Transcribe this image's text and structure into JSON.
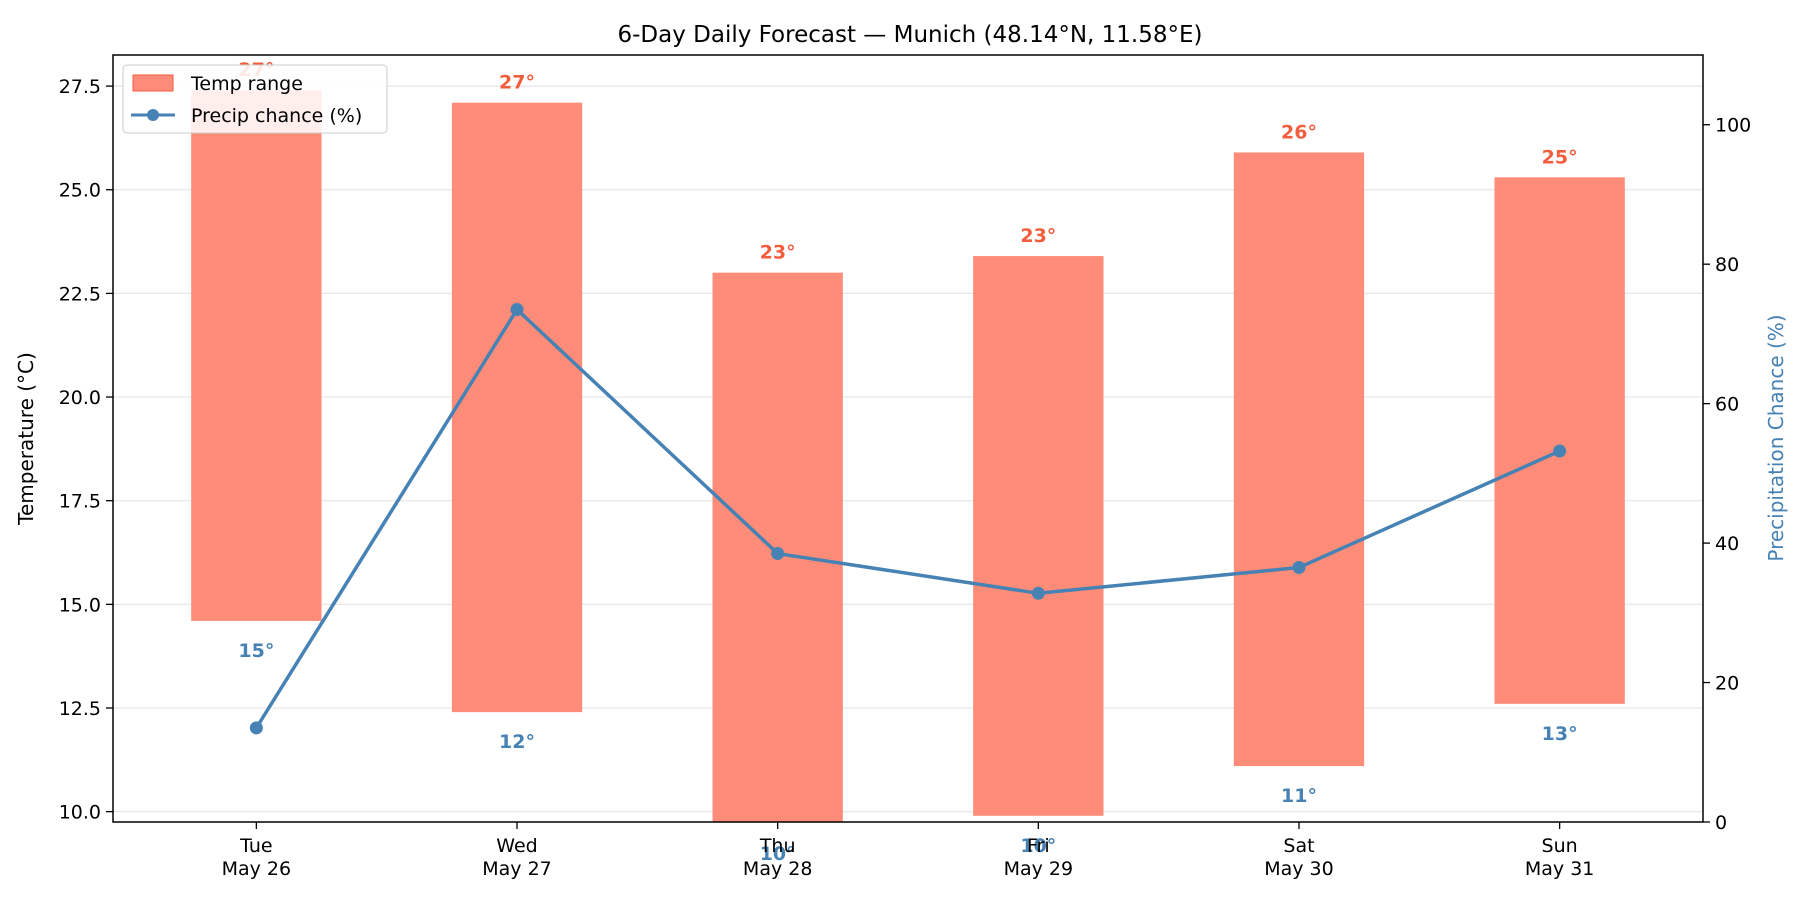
{
  "colors": {
    "bar": "#ff8c78",
    "high_label": "#f25d3d",
    "low_label": "#4682b4",
    "precip": "#4682b4",
    "grid": "#e6e6e6"
  },
  "chart_data": {
    "type": "bar",
    "title": "6-Day Daily Forecast — Munich (48.14°N, 11.58°E)",
    "ylabel": "Temperature (°C)",
    "ylabel_right": "Precipitation Chance (%)",
    "categories": [
      [
        "Tue",
        "May 26"
      ],
      [
        "Wed",
        "May 27"
      ],
      [
        "Thu",
        "May 28"
      ],
      [
        "Fri",
        "May 29"
      ],
      [
        "Sat",
        "May 30"
      ],
      [
        "Sun",
        "May 31"
      ]
    ],
    "ylim": [
      9.75,
      28.25
    ],
    "ylim_right": [
      0,
      110
    ],
    "yticks": [
      10.0,
      12.5,
      15.0,
      17.5,
      20.0,
      22.5,
      25.0,
      27.5
    ],
    "yticks_right": [
      0,
      20,
      40,
      60,
      80,
      100
    ],
    "grid": true,
    "legend_position": "top-left",
    "series": [
      {
        "name": "Temp range",
        "type": "floating-bar",
        "low": [
          14.6,
          12.4,
          9.7,
          9.9,
          11.1,
          12.6
        ],
        "high": [
          27.4,
          27.1,
          23.0,
          23.4,
          25.9,
          25.3
        ],
        "high_labels": [
          "27°",
          "27°",
          "23°",
          "23°",
          "26°",
          "25°"
        ],
        "low_labels": [
          "15°",
          "12°",
          "10°",
          "10°",
          "11°",
          "13°"
        ]
      },
      {
        "name": "Precip chance (%)",
        "type": "line",
        "axis": "right",
        "values": [
          13.5,
          73.5,
          38.5,
          32.8,
          36.5,
          53.2
        ]
      }
    ]
  }
}
